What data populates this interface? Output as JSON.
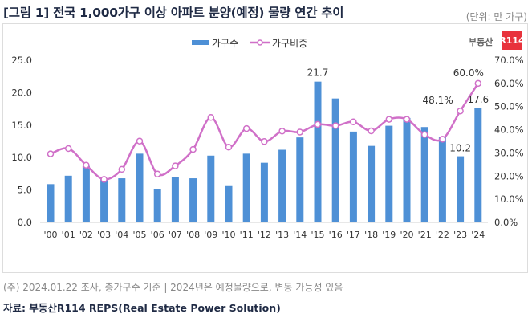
{
  "header": {
    "title": "[그림 1] 전국 1,000가구 이상 아파트 분양(예정) 물량 연간 추이",
    "unit": "(단위: 만 가구)"
  },
  "logo": {
    "text": "부동산",
    "mark": "R114"
  },
  "footer": {
    "note": "(주) 2024.01.22 조사, 총가구수 기준 | 2024년은 예정물량으로, 변동 가능성 있음",
    "source": "자료: 부동산R114 REPS(Real Estate Power Solution)"
  },
  "chart_data": {
    "type": "bar+line",
    "categories": [
      "'00",
      "'01",
      "'02",
      "'03",
      "'04",
      "'05",
      "'06",
      "'07",
      "'08",
      "'09",
      "'10",
      "'11",
      "'12",
      "'13",
      "'14",
      "'15",
      "'16",
      "'17",
      "'18",
      "'19",
      "'20",
      "'21",
      "'22",
      "'23",
      "'24"
    ],
    "series": [
      {
        "name": "가구수",
        "type": "bar",
        "axis": "left",
        "color": "#4e90d6",
        "values": [
          5.9,
          7.2,
          8.7,
          6.7,
          6.8,
          10.6,
          5.1,
          7.0,
          6.8,
          10.3,
          5.6,
          10.6,
          9.2,
          11.2,
          13.1,
          21.7,
          19.1,
          14.0,
          11.8,
          14.9,
          16.1,
          14.7,
          13.2,
          10.2,
          17.6
        ]
      },
      {
        "name": "가구비중",
        "type": "line",
        "axis": "right",
        "color": "#d070c8",
        "values": [
          29.6,
          31.9,
          24.7,
          18.6,
          22.9,
          35.1,
          20.9,
          24.4,
          31.5,
          45.3,
          32.5,
          40.5,
          34.9,
          39.4,
          39.0,
          42.3,
          41.7,
          43.4,
          39.5,
          44.5,
          44.5,
          37.9,
          35.9,
          48.1,
          60.0
        ]
      }
    ],
    "data_labels": [
      {
        "series": "가구수",
        "category": "'15",
        "text": "21.7"
      },
      {
        "series": "가구수",
        "category": "'23",
        "text": "10.2"
      },
      {
        "series": "가구수",
        "category": "'24",
        "text": "17.6"
      },
      {
        "series": "가구비중",
        "category": "'23",
        "text": "48.1%"
      },
      {
        "series": "가구비중",
        "category": "'24",
        "text": "60.0%"
      }
    ],
    "y_left": {
      "range": [
        0,
        25
      ],
      "ticks": [
        "0.0",
        "5.0",
        "10.0",
        "15.0",
        "20.0",
        "25.0"
      ]
    },
    "y_right": {
      "range": [
        0,
        70
      ],
      "ticks": [
        "0.0%",
        "10.0%",
        "20.0%",
        "30.0%",
        "40.0%",
        "50.0%",
        "60.0%",
        "70.0%"
      ]
    },
    "legend": {
      "placement": "top",
      "entries": [
        "가구수",
        "가구비중"
      ]
    },
    "grid": false
  }
}
